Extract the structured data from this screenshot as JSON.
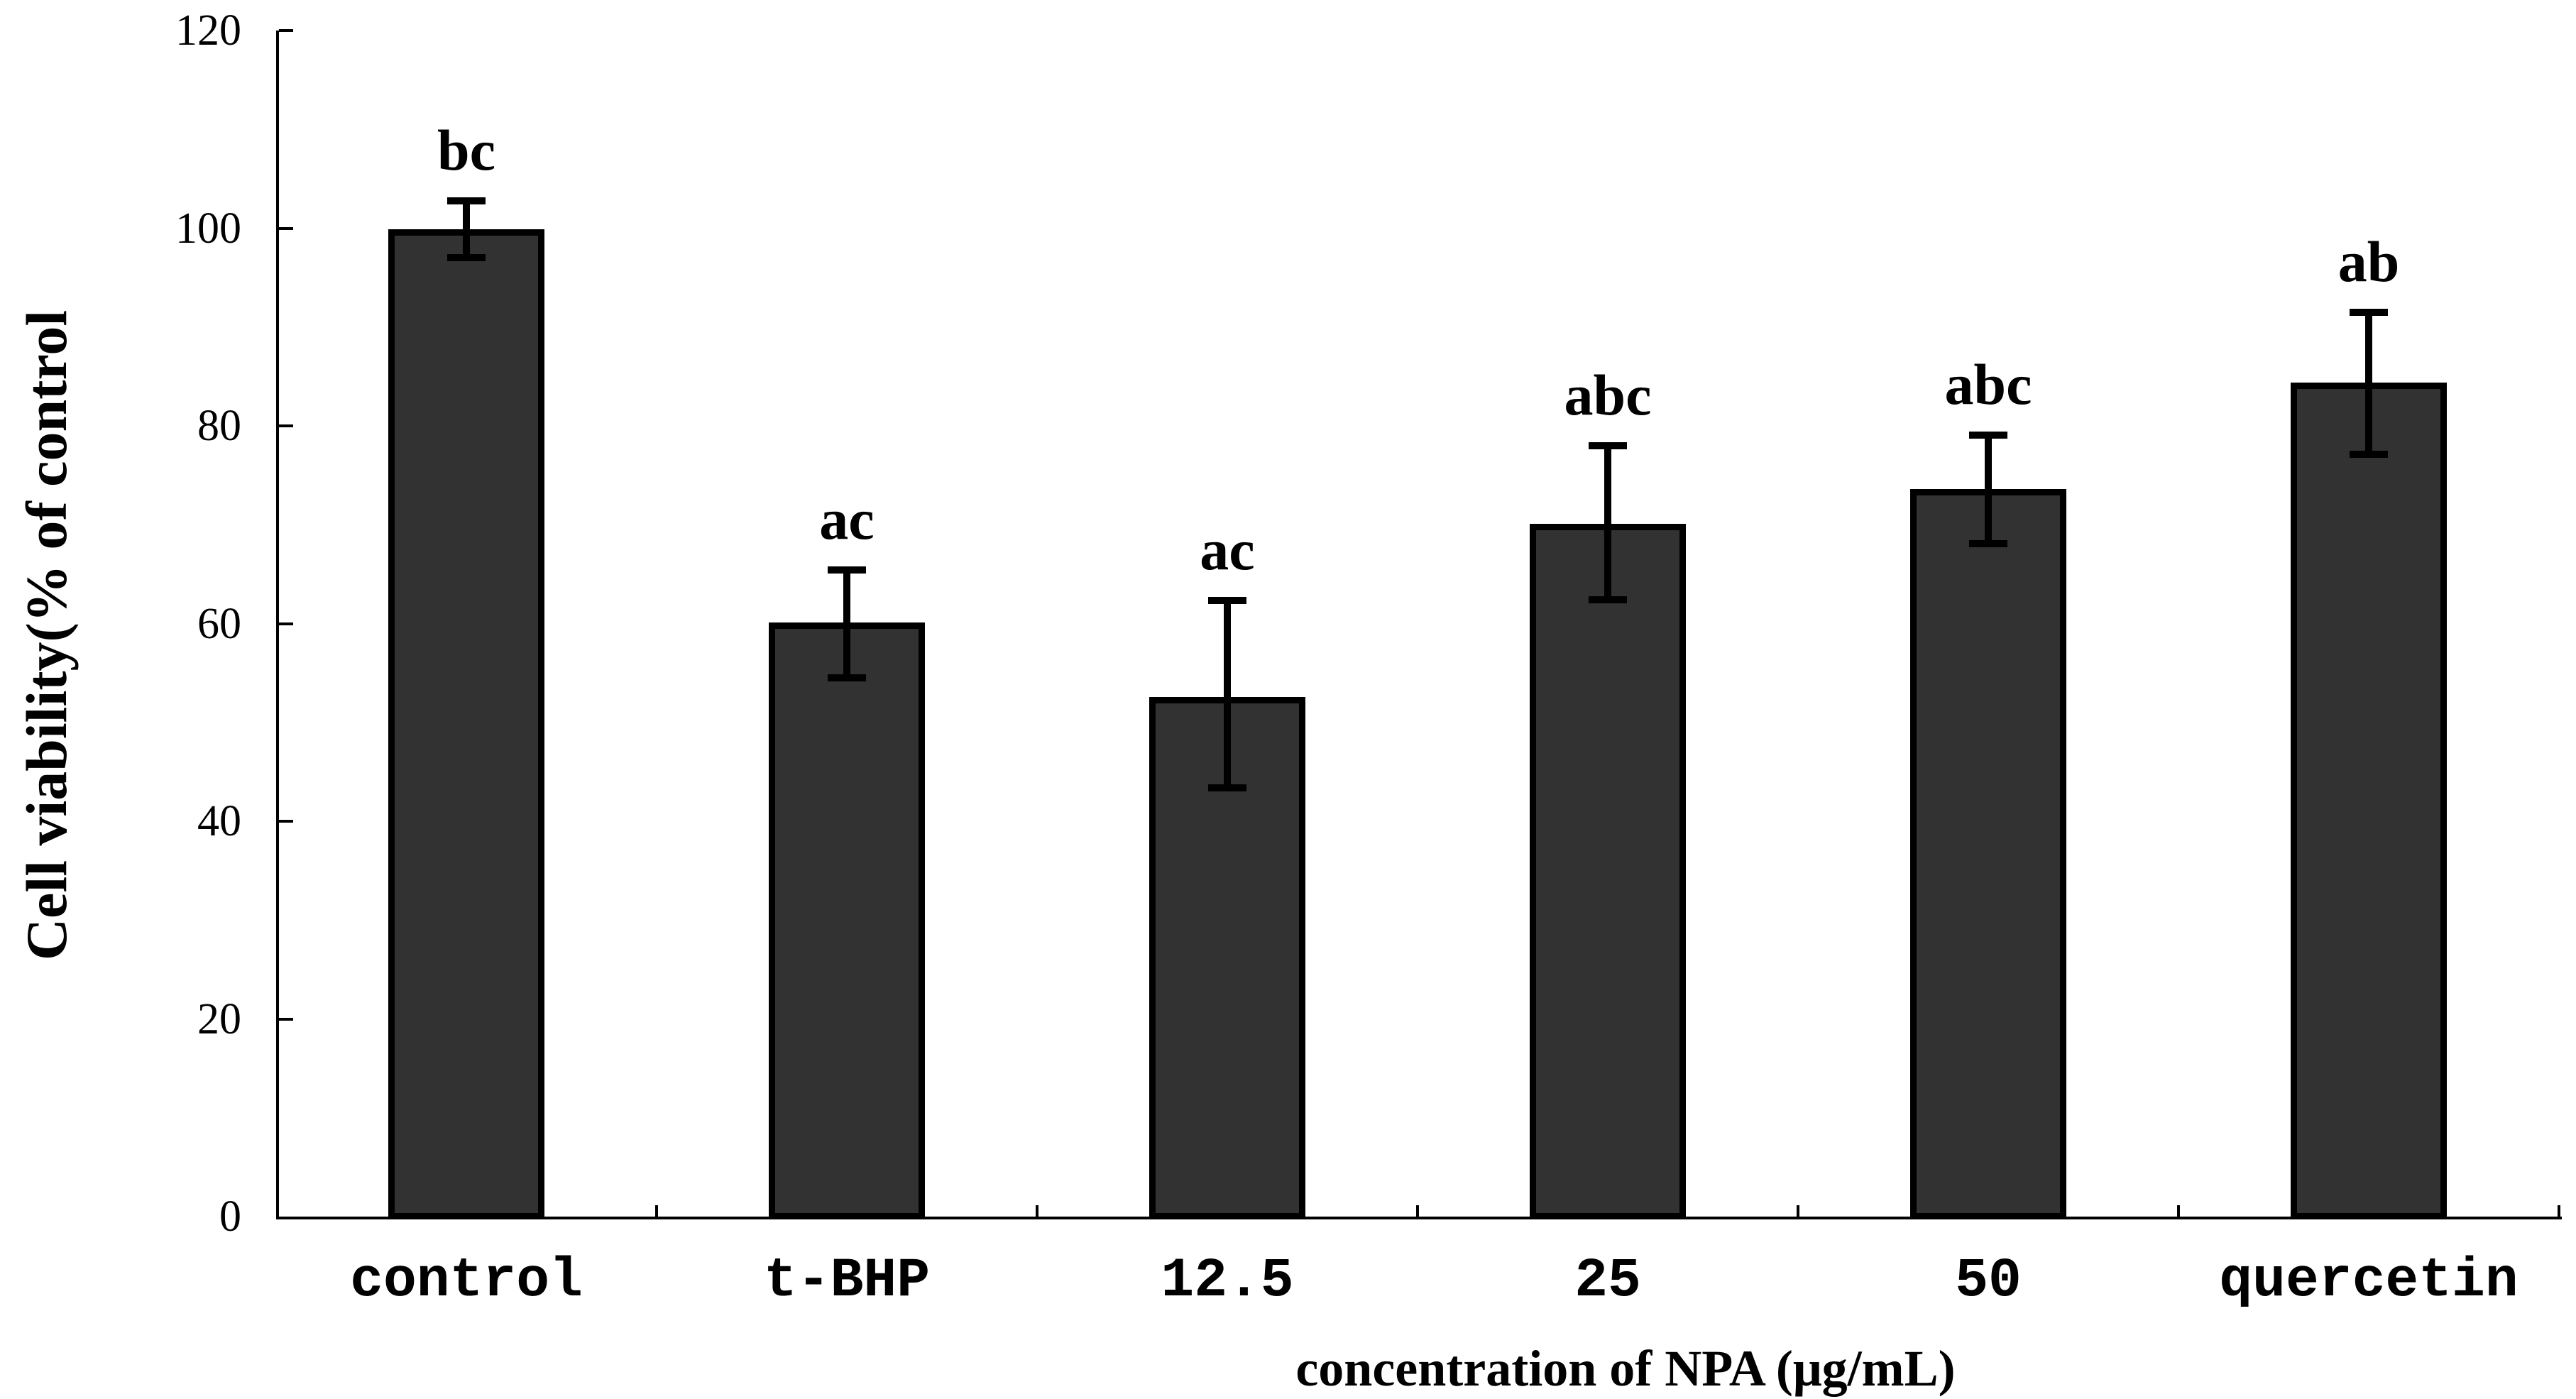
{
  "chart_data": {
    "type": "bar",
    "title": "",
    "xlabel": "concentration of NPA (μg/mL)",
    "ylabel": "Cell viability(% of control",
    "ylim": [
      0,
      120
    ],
    "yticks": [
      0,
      20,
      40,
      60,
      80,
      100,
      120
    ],
    "grid": false,
    "legend_position": "none",
    "categories": [
      "control",
      "t-BHP",
      "12.5",
      "25",
      "50",
      "quercetin"
    ],
    "series": [
      {
        "name": "cell-viability",
        "values": [
          99.9,
          60.1,
          52.6,
          70.1,
          73.6,
          84.4
        ],
        "error_plus": [
          2.9,
          5.3,
          9.7,
          7.9,
          5.5,
          7.1
        ],
        "error_minus": [
          2.9,
          5.6,
          9.2,
          7.7,
          5.5,
          7.3
        ],
        "sig_labels": [
          "bc",
          "ac",
          "ac",
          "abc",
          "abc",
          "ab"
        ]
      }
    ],
    "bar_fill_color": "#323232",
    "bar_border_color": "#000000",
    "axis_color": "#000000",
    "text_color": "#000000"
  }
}
